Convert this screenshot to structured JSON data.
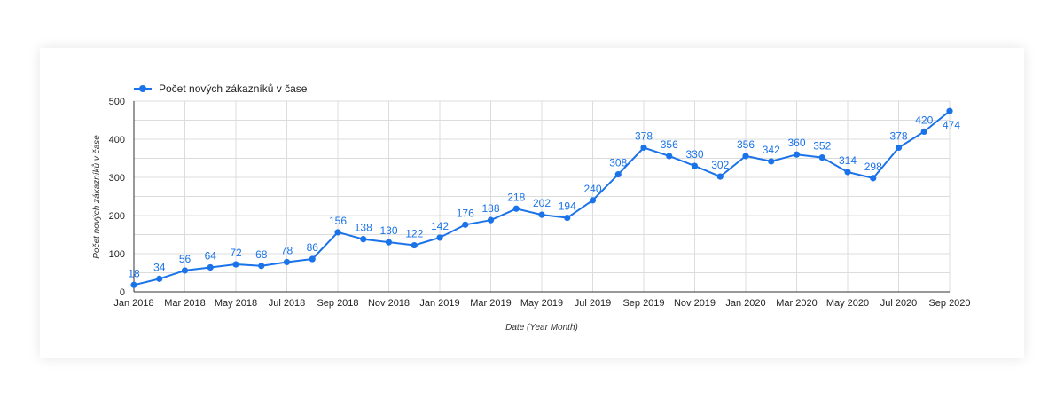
{
  "chart_data": {
    "type": "line",
    "xlabel": "Date (Year Month)",
    "ylabel": "Počet nových zákazníků v čase",
    "ylim": [
      0,
      500
    ],
    "yticks": [
      0,
      100,
      200,
      300,
      400,
      500
    ],
    "grid": true,
    "legend_position": "top-left",
    "color": "#1a73e8",
    "x": [
      "Jan 2018",
      "Feb 2018",
      "Mar 2018",
      "Apr 2018",
      "May 2018",
      "Jun 2018",
      "Jul 2018",
      "Aug 2018",
      "Sep 2018",
      "Oct 2018",
      "Nov 2018",
      "Dec 2018",
      "Jan 2019",
      "Feb 2019",
      "Mar 2019",
      "Apr 2019",
      "May 2019",
      "Jun 2019",
      "Jul 2019",
      "Aug 2019",
      "Sep 2019",
      "Oct 2019",
      "Nov 2019",
      "Dec 2019",
      "Jan 2020",
      "Feb 2020",
      "Mar 2020",
      "Apr 2020",
      "May 2020",
      "Jun 2020",
      "Jul 2020",
      "Aug 2020",
      "Sep 2020"
    ],
    "xtick_labels": [
      "Jan 2018",
      "Mar 2018",
      "May 2018",
      "Jul 2018",
      "Sep 2018",
      "Nov 2018",
      "Jan 2019",
      "Mar 2019",
      "May 2019",
      "Jul 2019",
      "Sep 2019",
      "Nov 2019",
      "Jan 2020",
      "Mar 2020",
      "May 2020",
      "Jul 2020",
      "Sep 2020"
    ],
    "series": [
      {
        "name": "Počet nových zákazníků v čase",
        "values": [
          18,
          34,
          56,
          64,
          72,
          68,
          78,
          86,
          156,
          138,
          130,
          122,
          142,
          176,
          188,
          218,
          202,
          194,
          240,
          308,
          378,
          356,
          330,
          302,
          356,
          342,
          360,
          352,
          314,
          298,
          378,
          420,
          474
        ]
      }
    ]
  }
}
